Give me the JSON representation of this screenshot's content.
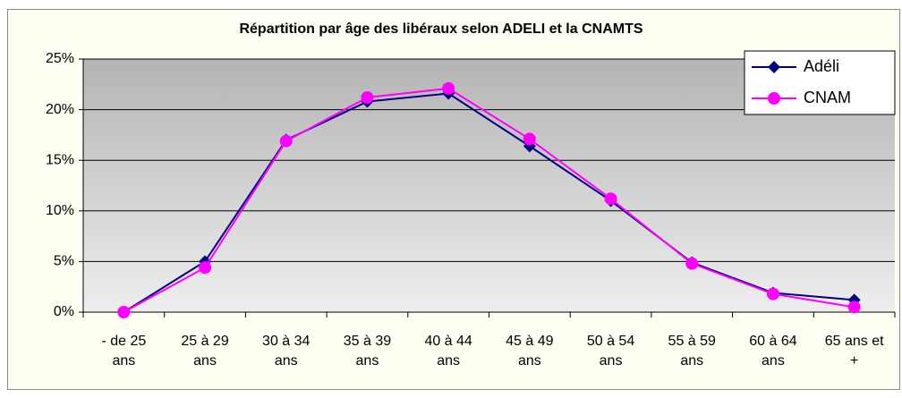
{
  "chart_data": {
    "type": "line",
    "title": "Répartition par âge des libéraux selon ADELI et la CNAMTS",
    "categories": [
      "- de 25 ans",
      "25 à 29 ans",
      "30 à 34 ans",
      "35 à 39 ans",
      "40 à 44 ans",
      "45 à 49 ans",
      "50 à 54 ans",
      "55 à 59 ans",
      "60 à 64 ans",
      "65 ans et +"
    ],
    "series": [
      {
        "name": "Adéli",
        "color": "#000080",
        "marker": "diamond",
        "values": [
          0,
          5.0,
          17.0,
          20.8,
          21.6,
          16.4,
          11.0,
          4.9,
          1.9,
          1.2
        ]
      },
      {
        "name": "CNAM",
        "color": "#ff00ff",
        "marker": "circle",
        "values": [
          0,
          4.4,
          16.9,
          21.2,
          22.1,
          17.1,
          11.2,
          4.8,
          1.8,
          0.5
        ]
      }
    ],
    "ylim": [
      0,
      25
    ],
    "yticks": [
      {
        "value": 0,
        "label": "0%"
      },
      {
        "value": 5,
        "label": "5%"
      },
      {
        "value": 10,
        "label": "10%"
      },
      {
        "value": 15,
        "label": "15%"
      },
      {
        "value": 20,
        "label": "20%"
      },
      {
        "value": 25,
        "label": "25%"
      }
    ],
    "grid": true,
    "legend": "upper right"
  }
}
